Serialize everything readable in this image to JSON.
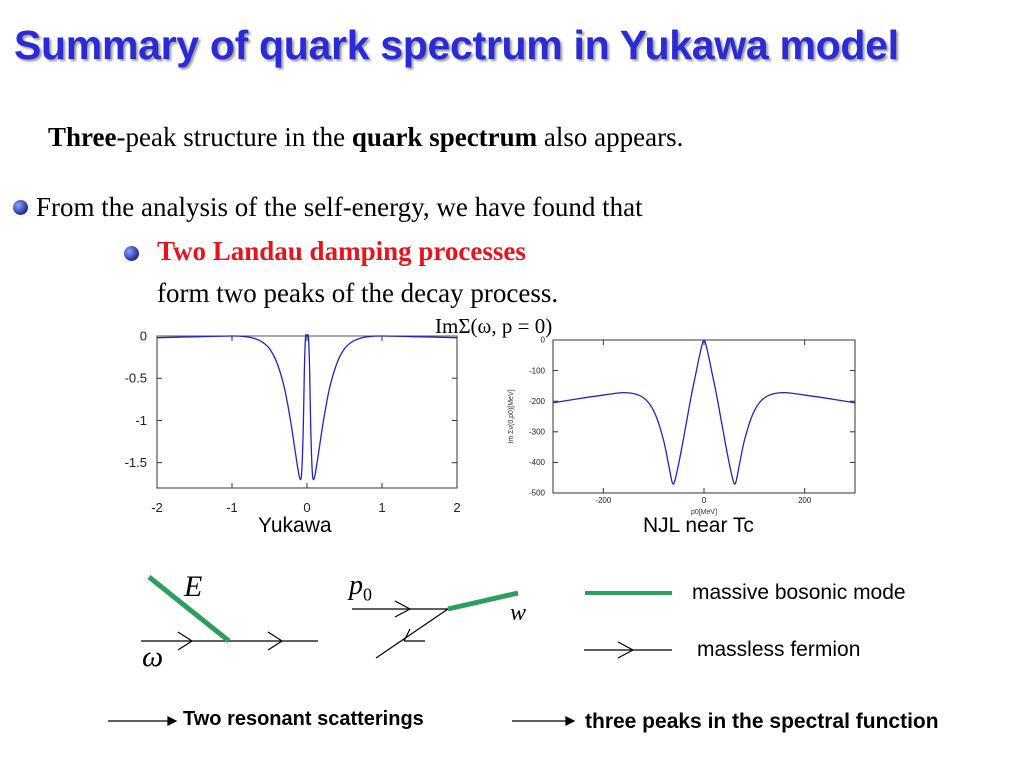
{
  "title": "Summary of quark spectrum in Yukawa model",
  "line1": {
    "bold1": "Three",
    "text1": "-peak structure in the ",
    "bold2": "quark spectrum",
    "text2": " also appears."
  },
  "bullet1": "From the analysis of the self-energy, we have found that",
  "bullet2": {
    "red": "Two Landau damping processes",
    "line2": "form two peaks of the decay process."
  },
  "formula": "ImΣ(ω, p = 0)",
  "colors": {
    "title": "#2b2bd6",
    "red": "#e8141c",
    "curve": "#2222cc",
    "boson": "#2e9e5e"
  },
  "chart_data": [
    {
      "type": "line",
      "label": "Yukawa",
      "xlim": [
        -2,
        2
      ],
      "ylim": [
        -1.8,
        0
      ],
      "xticks": [
        "-2",
        "-1",
        "0",
        "1",
        "2"
      ],
      "yticks": [
        "0",
        "-0.5",
        "-1",
        "-1.5"
      ],
      "x": [
        -2,
        -1.5,
        -1,
        -0.8,
        -0.7,
        -0.6,
        -0.5,
        -0.4,
        -0.3,
        -0.22,
        -0.16,
        -0.12,
        -0.09,
        -0.07,
        -0.05,
        -0.035,
        -0.02,
        0,
        0.02,
        0.035,
        0.05,
        0.07,
        0.09,
        0.12,
        0.16,
        0.22,
        0.3,
        0.4,
        0.5,
        0.6,
        0.7,
        0.8,
        1,
        1.5,
        2
      ],
      "y": [
        -0.02,
        -0.01,
        0,
        -0.01,
        -0.03,
        -0.07,
        -0.15,
        -0.32,
        -0.62,
        -1.0,
        -1.35,
        -1.58,
        -1.7,
        -1.6,
        -1.1,
        -0.4,
        -0.02,
        0,
        -0.02,
        -0.4,
        -1.1,
        -1.6,
        -1.7,
        -1.58,
        -1.35,
        -1.0,
        -0.62,
        -0.32,
        -0.15,
        -0.07,
        -0.03,
        -0.01,
        0,
        -0.01,
        -0.02
      ]
    },
    {
      "type": "line",
      "label": "NJL near Tc",
      "xlabel": "p0[MeV]",
      "ylabel": "Im Σv(0,p0)[MeV]",
      "xlim": [
        -300,
        300
      ],
      "ylim": [
        -500,
        0
      ],
      "xticks": [
        "-200",
        "0",
        "200"
      ],
      "yticks": [
        "0",
        "-100",
        "-200",
        "-300",
        "-400",
        "-500"
      ],
      "x": [
        -300,
        -250,
        -200,
        -160,
        -130,
        -110,
        -95,
        -80,
        -70,
        -62,
        -55,
        -45,
        -35,
        -25,
        -15,
        -8,
        0,
        8,
        15,
        25,
        35,
        45,
        55,
        62,
        70,
        80,
        95,
        110,
        130,
        160,
        200,
        250,
        300
      ],
      "y": [
        -205,
        -192,
        -180,
        -172,
        -180,
        -205,
        -250,
        -330,
        -410,
        -470,
        -440,
        -360,
        -270,
        -180,
        -100,
        -45,
        0,
        -45,
        -100,
        -180,
        -270,
        -360,
        -440,
        -470,
        -410,
        -330,
        -250,
        -205,
        -180,
        -172,
        -180,
        -192,
        -205
      ]
    }
  ],
  "diagrams": {
    "E": "E",
    "omega": "ω",
    "p0": "p",
    "p0_sub": "0",
    "w": "w"
  },
  "legend": {
    "boson": "massive bosonic mode",
    "fermion": "massless fermion"
  },
  "bottom": {
    "left": "Two resonant scatterings",
    "right": "three peaks in the spectral function"
  }
}
